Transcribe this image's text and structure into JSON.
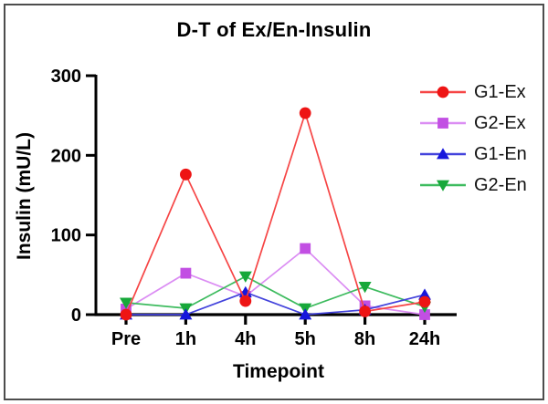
{
  "figure": {
    "background": "#ffffff",
    "border_color": "#4d4d4d"
  },
  "chart_data": {
    "type": "line",
    "title": "D-T of Ex/En-Insulin",
    "xlabel": "Timepoint",
    "ylabel": "Insulin (mU/L)",
    "categories": [
      "Pre",
      "1h",
      "4h",
      "5h",
      "8h",
      "24h"
    ],
    "ylim": [
      0,
      300
    ],
    "yticks": [
      0,
      100,
      200,
      300
    ],
    "grid": false,
    "legend_position": "upper-right",
    "axis_color": "#000000",
    "series": [
      {
        "name": "G1-Ex",
        "marker": "circle",
        "color": "#ee1414",
        "line_color": "#f64545",
        "values": [
          0,
          176,
          17,
          253,
          4,
          16
        ]
      },
      {
        "name": "G2-Ex",
        "marker": "square",
        "color": "#c24fe3",
        "line_color": "#db8df3",
        "values": [
          7,
          52,
          23,
          83,
          11,
          0
        ]
      },
      {
        "name": "G1-En",
        "marker": "triangle-up",
        "color": "#1616dc",
        "line_color": "#4343dc",
        "values": [
          0,
          0,
          28,
          0,
          6,
          25
        ]
      },
      {
        "name": "G2-En",
        "marker": "triangle-down",
        "color": "#17a83a",
        "line_color": "#3dbb5e",
        "values": [
          15,
          8,
          48,
          8,
          35,
          10
        ]
      }
    ]
  }
}
